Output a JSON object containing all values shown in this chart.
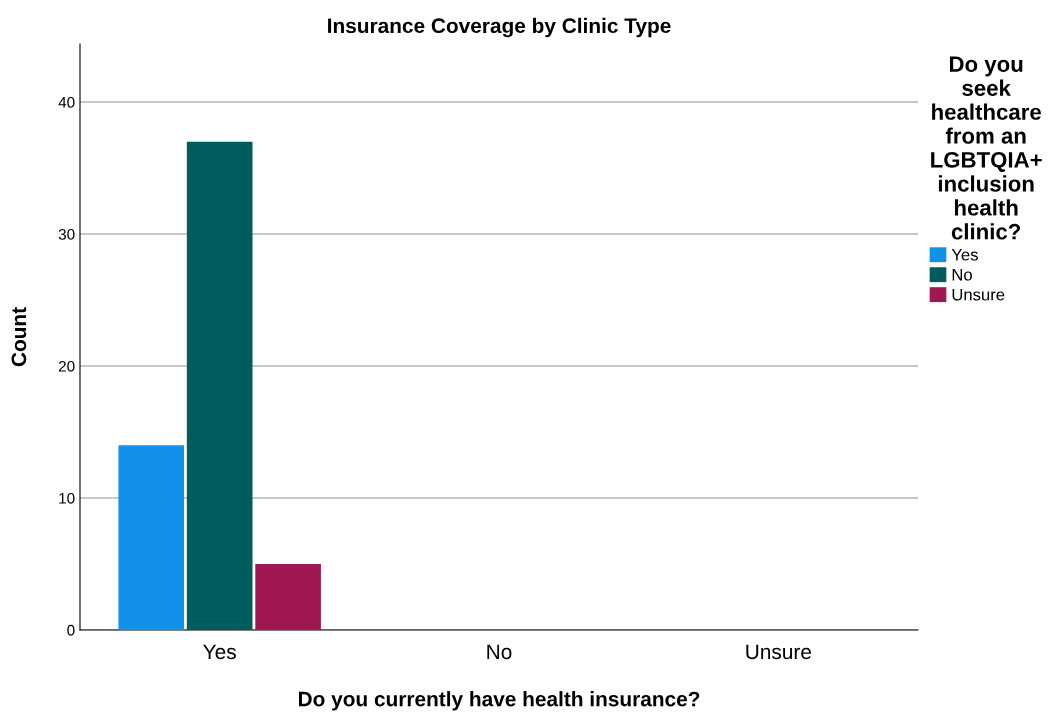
{
  "chart_data": {
    "type": "bar",
    "title": "Insurance Coverage by Clinic Type",
    "xlabel": "Do you currently have health insurance?",
    "ylabel": "Count",
    "legend_title": "Do you\nseek\nhealthcare\nfrom an\nLGBTQIA+\ninclusion\nhealth\nclinic?",
    "categories": [
      "Yes",
      "No",
      "Unsure"
    ],
    "series": [
      {
        "name": "Yes",
        "color": "#1192e8",
        "values": [
          14,
          null,
          null
        ]
      },
      {
        "name": "No",
        "color": "#005d5d",
        "values": [
          37,
          null,
          null
        ]
      },
      {
        "name": "Unsure",
        "color": "#9f1853",
        "values": [
          5,
          null,
          null
        ]
      }
    ],
    "ylim": [
      0,
      44.4
    ],
    "yticks": [
      0,
      10,
      20,
      30,
      40
    ],
    "grid": "y",
    "legend": "right"
  }
}
